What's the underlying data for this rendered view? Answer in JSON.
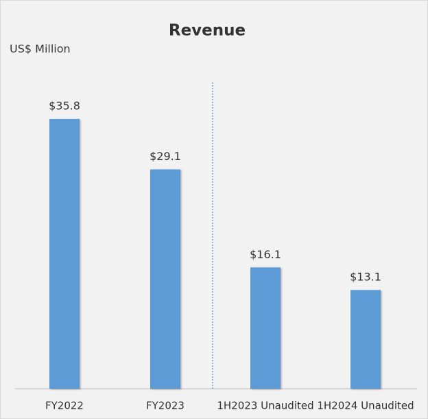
{
  "chart_data": {
    "type": "bar",
    "title": "Revenue",
    "y_label": "US$ Million",
    "categories": [
      "FY2022",
      "FY2023",
      "1H2023 Unaudited",
      "1H2024 Unaudited"
    ],
    "values": [
      35.8,
      29.1,
      16.1,
      13.1
    ],
    "value_labels": [
      "$35.8",
      "$29.1",
      "$16.1",
      "$13.1"
    ],
    "color": "#5b9bd5",
    "ylim": [
      0,
      40
    ]
  }
}
